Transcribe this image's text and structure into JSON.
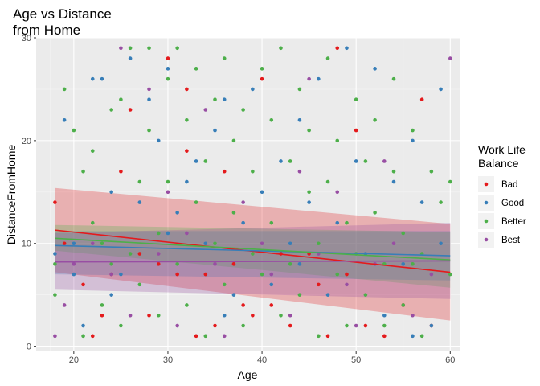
{
  "chart_data": {
    "type": "scatter",
    "title": [
      "Age vs Distance",
      "from Home"
    ],
    "xlabel": "Age",
    "ylabel": "DistanceFromHome",
    "xlim": [
      16,
      61
    ],
    "ylim": [
      -0.5,
      30
    ],
    "xticks": [
      20,
      30,
      40,
      50,
      60
    ],
    "yticks": [
      0,
      10,
      20,
      30
    ],
    "grid": true,
    "legend": {
      "title": [
        "Work Life",
        "Balance"
      ],
      "placement": "right"
    },
    "series": [
      {
        "name": "Bad",
        "color": "#E41A1C",
        "points": [
          [
            18,
            14
          ],
          [
            19,
            10
          ],
          [
            21,
            6
          ],
          [
            22,
            1
          ],
          [
            23,
            3
          ],
          [
            24,
            7
          ],
          [
            25,
            17
          ],
          [
            26,
            23
          ],
          [
            27,
            9
          ],
          [
            28,
            3
          ],
          [
            29,
            8
          ],
          [
            30,
            28
          ],
          [
            31,
            7
          ],
          [
            32,
            19
          ],
          [
            32,
            25
          ],
          [
            33,
            1
          ],
          [
            34,
            7
          ],
          [
            35,
            2
          ],
          [
            36,
            17
          ],
          [
            37,
            8
          ],
          [
            38,
            4
          ],
          [
            39,
            3
          ],
          [
            40,
            26
          ],
          [
            41,
            4
          ],
          [
            42,
            9
          ],
          [
            43,
            2
          ],
          [
            45,
            9
          ],
          [
            46,
            6
          ],
          [
            47,
            1
          ],
          [
            48,
            29
          ],
          [
            49,
            7
          ],
          [
            50,
            21
          ],
          [
            51,
            2
          ],
          [
            53,
            1
          ],
          [
            55,
            4
          ],
          [
            57,
            24
          ],
          [
            58,
            2
          ]
        ],
        "trend": {
          "start": 11.3,
          "end": 7.2,
          "band_start": [
            7.2,
            15.4
          ],
          "band_end": [
            2.5,
            11.9
          ]
        }
      },
      {
        "name": "Good",
        "color": "#377EB8",
        "points": [
          [
            18,
            9
          ],
          [
            19,
            22
          ],
          [
            20,
            10
          ],
          [
            21,
            2
          ],
          [
            22,
            26
          ],
          [
            23,
            26
          ],
          [
            24,
            15
          ],
          [
            25,
            7
          ],
          [
            26,
            28
          ],
          [
            27,
            14
          ],
          [
            28,
            24
          ],
          [
            29,
            20
          ],
          [
            30,
            27
          ],
          [
            31,
            13
          ],
          [
            32,
            16
          ],
          [
            33,
            18
          ],
          [
            34,
            10
          ],
          [
            35,
            21
          ],
          [
            36,
            24
          ],
          [
            37,
            5
          ],
          [
            38,
            12
          ],
          [
            39,
            25
          ],
          [
            40,
            15
          ],
          [
            41,
            6
          ],
          [
            42,
            18
          ],
          [
            43,
            10
          ],
          [
            44,
            22
          ],
          [
            45,
            14
          ],
          [
            46,
            26
          ],
          [
            47,
            5
          ],
          [
            48,
            12
          ],
          [
            49,
            29
          ],
          [
            50,
            18
          ],
          [
            51,
            9
          ],
          [
            52,
            27
          ],
          [
            53,
            3
          ],
          [
            54,
            16
          ],
          [
            55,
            8
          ],
          [
            56,
            20
          ],
          [
            57,
            14
          ],
          [
            58,
            2
          ],
          [
            59,
            25
          ],
          [
            59,
            10
          ],
          [
            56,
            1
          ],
          [
            44,
            8
          ],
          [
            36,
            3
          ],
          [
            30,
            11
          ],
          [
            24,
            5
          ],
          [
            20,
            7
          ]
        ],
        "trend": {
          "start": 9.8,
          "end": 8.8,
          "band_start": [
            7.0,
            11.2
          ],
          "band_end": [
            6.4,
            11.2
          ]
        }
      },
      {
        "name": "Better",
        "color": "#4DAF4A",
        "points": [
          [
            18,
            8
          ],
          [
            18,
            5
          ],
          [
            19,
            25
          ],
          [
            20,
            21
          ],
          [
            21,
            1
          ],
          [
            21,
            17
          ],
          [
            22,
            19
          ],
          [
            22,
            12
          ],
          [
            23,
            10
          ],
          [
            23,
            4
          ],
          [
            24,
            8
          ],
          [
            24,
            23
          ],
          [
            25,
            2
          ],
          [
            25,
            24
          ],
          [
            26,
            29
          ],
          [
            26,
            9
          ],
          [
            27,
            16
          ],
          [
            27,
            6
          ],
          [
            28,
            29
          ],
          [
            28,
            21
          ],
          [
            29,
            11
          ],
          [
            29,
            3
          ],
          [
            30,
            16
          ],
          [
            30,
            26
          ],
          [
            31,
            29
          ],
          [
            31,
            8
          ],
          [
            32,
            22
          ],
          [
            32,
            4
          ],
          [
            33,
            14
          ],
          [
            33,
            27
          ],
          [
            34,
            1
          ],
          [
            34,
            18
          ],
          [
            35,
            24
          ],
          [
            35,
            10
          ],
          [
            36,
            6
          ],
          [
            36,
            28
          ],
          [
            37,
            20
          ],
          [
            37,
            13
          ],
          [
            38,
            2
          ],
          [
            38,
            23
          ],
          [
            39,
            17
          ],
          [
            39,
            9
          ],
          [
            40,
            27
          ],
          [
            40,
            7
          ],
          [
            41,
            12
          ],
          [
            41,
            22
          ],
          [
            42,
            3
          ],
          [
            42,
            29
          ],
          [
            43,
            18
          ],
          [
            43,
            8
          ],
          [
            44,
            25
          ],
          [
            44,
            5
          ],
          [
            45,
            15
          ],
          [
            45,
            21
          ],
          [
            46,
            1
          ],
          [
            46,
            10
          ],
          [
            47,
            28
          ],
          [
            47,
            16
          ],
          [
            48,
            7
          ],
          [
            48,
            20
          ],
          [
            49,
            2
          ],
          [
            49,
            12
          ],
          [
            50,
            24
          ],
          [
            50,
            9
          ],
          [
            51,
            18
          ],
          [
            51,
            5
          ],
          [
            52,
            22
          ],
          [
            52,
            13
          ],
          [
            53,
            8
          ],
          [
            53,
            2
          ],
          [
            54,
            26
          ],
          [
            54,
            17
          ],
          [
            55,
            11
          ],
          [
            55,
            4
          ],
          [
            56,
            21
          ],
          [
            56,
            8
          ],
          [
            57,
            9
          ],
          [
            57,
            1
          ],
          [
            58,
            17
          ],
          [
            59,
            14
          ],
          [
            60,
            7
          ],
          [
            60,
            16
          ]
        ],
        "trend": {
          "start": 10.5,
          "end": 8.4,
          "band_start": [
            9.3,
            11.8
          ],
          "band_end": [
            5.7,
            11.1
          ]
        }
      },
      {
        "name": "Best",
        "color": "#984EA3",
        "points": [
          [
            18,
            1
          ],
          [
            19,
            4
          ],
          [
            20,
            8
          ],
          [
            22,
            10
          ],
          [
            24,
            7
          ],
          [
            25,
            29
          ],
          [
            26,
            3
          ],
          [
            28,
            25
          ],
          [
            29,
            9
          ],
          [
            30,
            15
          ],
          [
            31,
            2
          ],
          [
            32,
            11
          ],
          [
            34,
            23
          ],
          [
            35,
            8
          ],
          [
            36,
            1
          ],
          [
            38,
            14
          ],
          [
            40,
            10
          ],
          [
            41,
            7
          ],
          [
            43,
            3
          ],
          [
            44,
            17
          ],
          [
            45,
            26
          ],
          [
            46,
            9
          ],
          [
            48,
            15
          ],
          [
            49,
            6
          ],
          [
            50,
            2
          ],
          [
            52,
            8
          ],
          [
            53,
            18
          ],
          [
            54,
            10
          ],
          [
            56,
            3
          ],
          [
            58,
            7
          ],
          [
            60,
            28
          ]
        ],
        "trend": {
          "start": 8.2,
          "end": 8.3,
          "band_start": [
            5.5,
            11.0
          ],
          "band_end": [
            4.6,
            12.0
          ]
        }
      }
    ]
  }
}
